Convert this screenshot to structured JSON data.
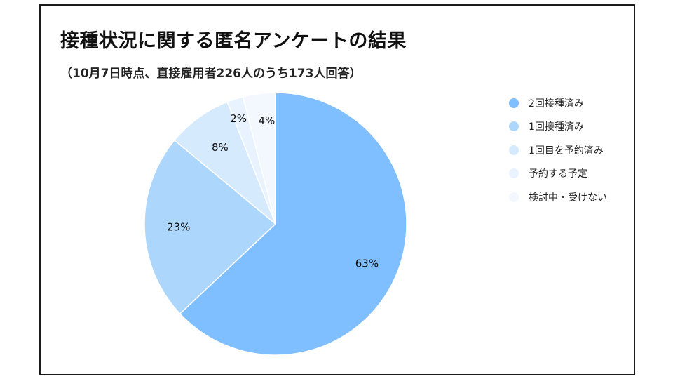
{
  "chart_data": {
    "type": "pie",
    "title": "接種状況に関する匿名アンケートの結果",
    "subtitle": "（10月7日時点、直接雇用者226人のうち173人回答）",
    "legend_position": "right",
    "slices": [
      {
        "label": "2回接種済み",
        "value": 63,
        "value_label": "63%",
        "color": "#7fbfff"
      },
      {
        "label": "1回接種済み",
        "value": 23,
        "value_label": "23%",
        "color": "#add6fd"
      },
      {
        "label": "1回目を予約済み",
        "value": 8,
        "value_label": "8%",
        "color": "#d6eafe"
      },
      {
        "label": "予約する予定",
        "value": 2,
        "value_label": "2%",
        "color": "#e8f3ff"
      },
      {
        "label": "検討中・受けない",
        "value": 4,
        "value_label": "4%",
        "color": "#f3f8ff"
      }
    ]
  }
}
